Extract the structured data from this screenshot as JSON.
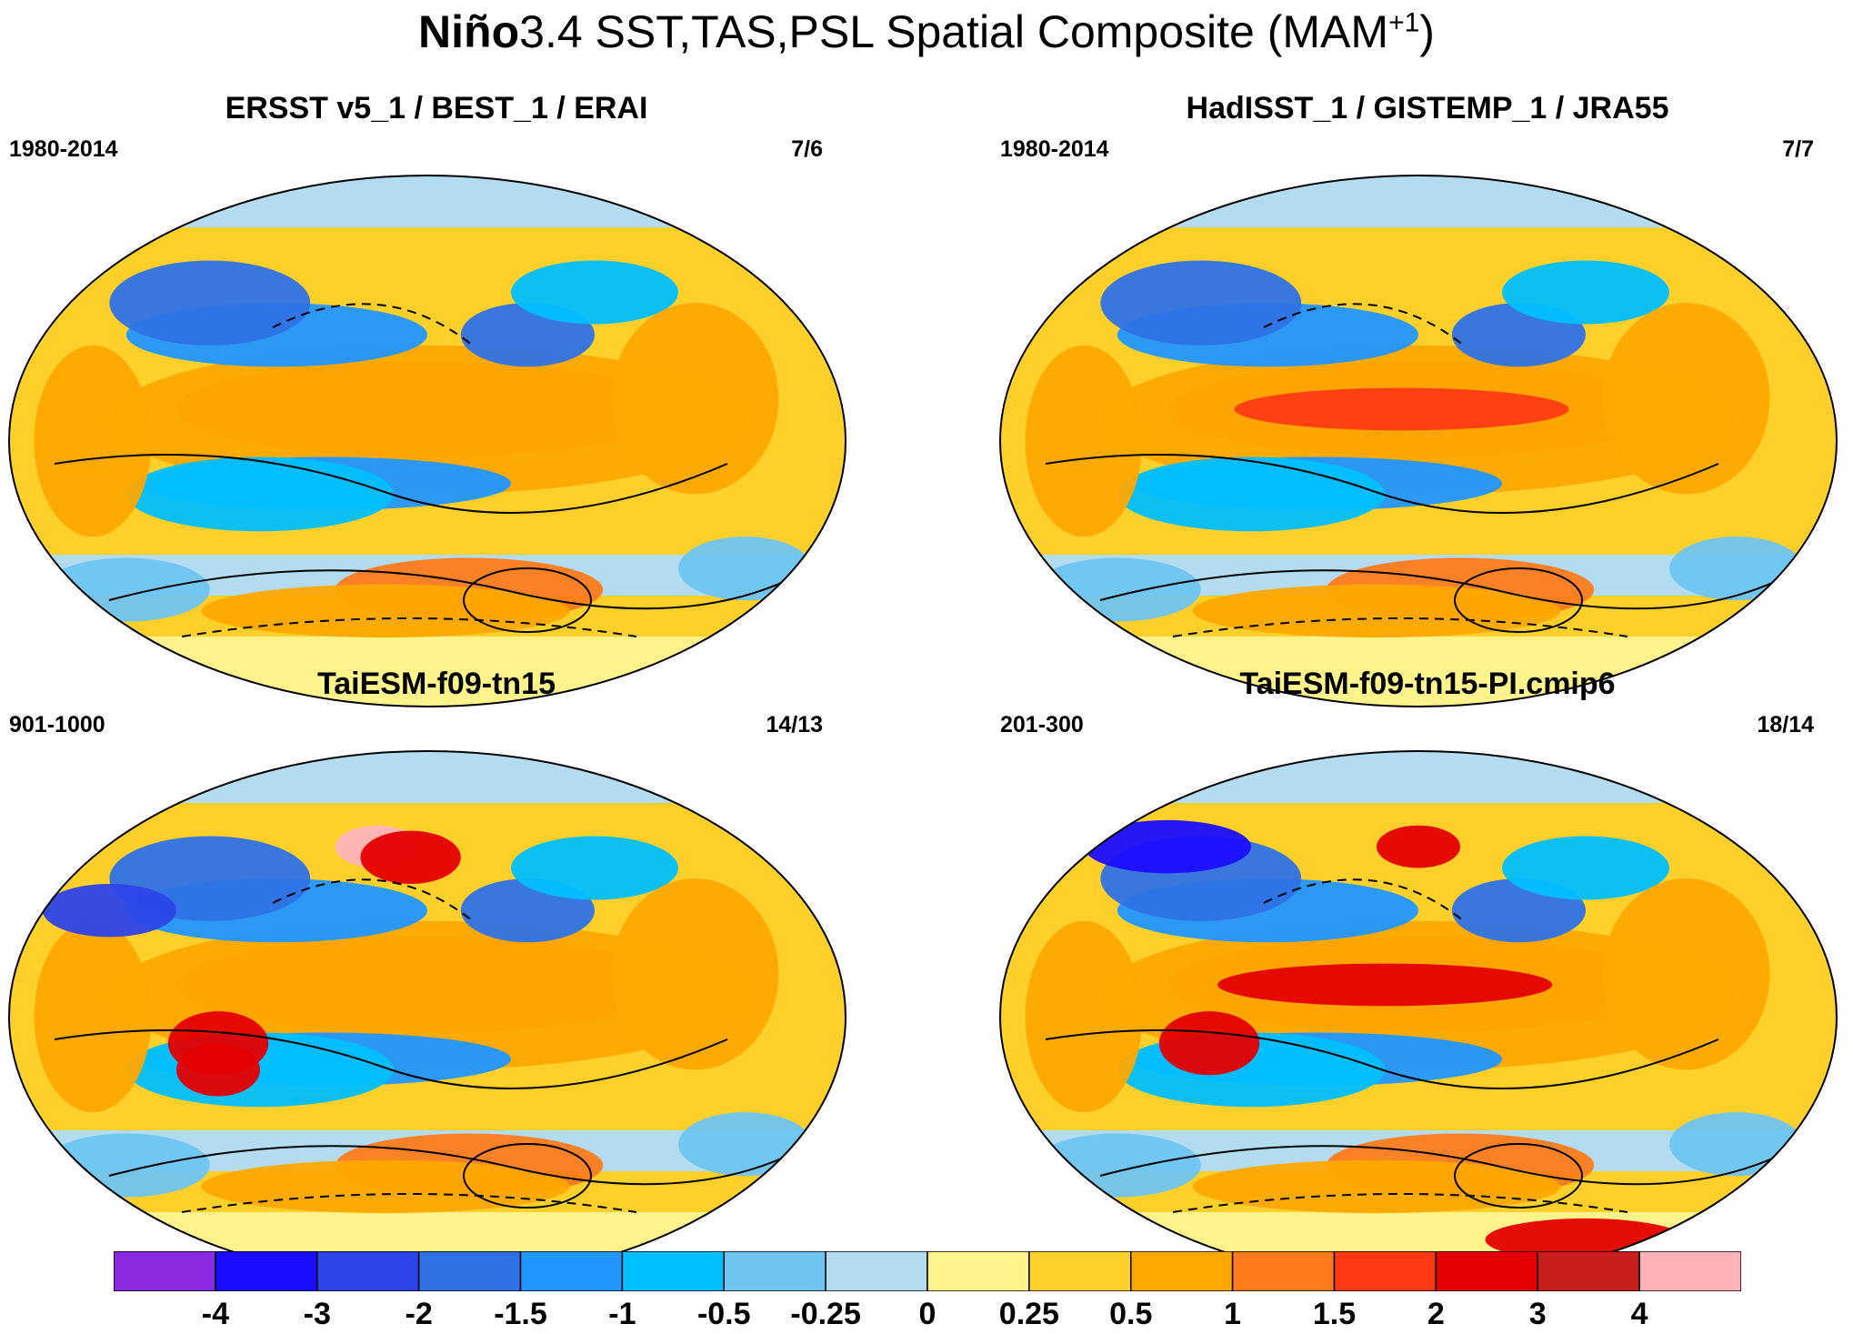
{
  "title": {
    "bold_part": "Niño",
    "rest": "3.4 SST,TAS,PSL Spatial Composite (MAM",
    "superscript": "+1",
    "close": ")"
  },
  "panels": [
    {
      "title": "ERSST v5_1 / BEST_1 / ERAI",
      "period": "1980-2014",
      "count": "7/6"
    },
    {
      "title": "HadISST_1 / GISTEMP_1 / JRA55",
      "period": "1980-2014",
      "count": "7/7"
    },
    {
      "title": "TaiESM-f09-tn15",
      "period": "901-1000",
      "count": "14/13"
    },
    {
      "title": "TaiESM-f09-tn15-PI.cmip6",
      "period": "201-300",
      "count": "18/14"
    }
  ],
  "colorbar": {
    "colors": [
      "#8a2be2",
      "#1a0dff",
      "#2c44e8",
      "#2f72e6",
      "#2196ff",
      "#00bfff",
      "#6fc4f1",
      "#b4dcf1",
      "#fff48c",
      "#ffd02a",
      "#ffa800",
      "#ff7a1a",
      "#ff3a12",
      "#e50000",
      "#c81e1e",
      "#ffb3b8"
    ],
    "labels": [
      "-4",
      "-3",
      "-2",
      "-1.5",
      "-1",
      "-0.5",
      "-0.25",
      "0",
      "0.25",
      "0.5",
      "1",
      "1.5",
      "2",
      "3",
      "4"
    ]
  }
}
